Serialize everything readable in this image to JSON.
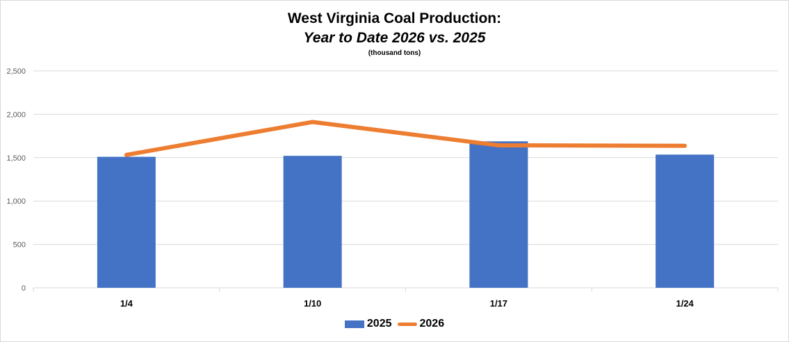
{
  "chart_data": {
    "type": "bar",
    "title": "West Virginia Coal Production:",
    "subtitle": "Year to Date 2026 vs. 2025",
    "units": "(thousand tons)",
    "xlabel": "",
    "ylabel": "",
    "categories": [
      "1/4",
      "1/10",
      "1/17",
      "1/24"
    ],
    "ylim": [
      0,
      2500
    ],
    "yticks": [
      0,
      500,
      1000,
      1500,
      2000,
      2500
    ],
    "ytick_labels": [
      "0",
      "500",
      "1,000",
      "1,500",
      "2,000",
      "2,500"
    ],
    "grid": true,
    "legend_position": "bottom",
    "series": [
      {
        "name": "2025",
        "type": "bar",
        "color": "#4472c4",
        "values": [
          1510,
          1521,
          1688,
          1535
        ]
      },
      {
        "name": "2026",
        "type": "line",
        "color": "#ed7d31",
        "values": [
          1532,
          1911,
          1642,
          1637
        ]
      }
    ]
  }
}
